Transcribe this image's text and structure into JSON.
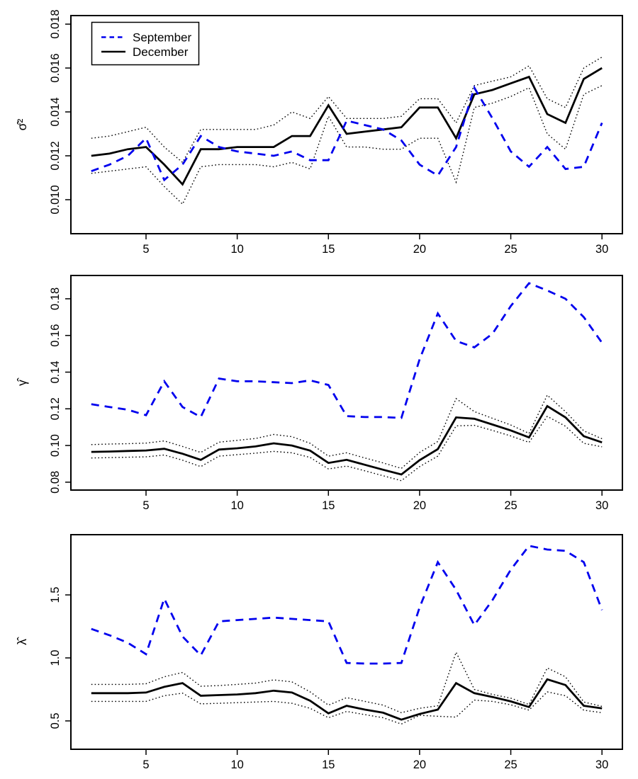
{
  "figure": {
    "background": "#ffffff",
    "series_colors": {
      "september": "#0000ee",
      "december": "#000000",
      "band": "#000000"
    }
  },
  "legend": {
    "items": [
      {
        "label": "September",
        "color": "#0000ee",
        "style": "dashed"
      },
      {
        "label": "December",
        "color": "#000000",
        "style": "solid"
      }
    ]
  },
  "chart_data": [
    {
      "type": "line",
      "ylabel": "σ̂²",
      "x": [
        2,
        3,
        4,
        5,
        6,
        7,
        8,
        9,
        10,
        11,
        12,
        13,
        14,
        15,
        16,
        17,
        18,
        19,
        20,
        21,
        22,
        23,
        24,
        25,
        26,
        27,
        28,
        29,
        30
      ],
      "xlim": [
        0.88,
        31.12
      ],
      "ylim": [
        0.00845,
        0.01839
      ],
      "x_ticks": {
        "values": [
          5,
          10,
          15,
          20,
          25,
          30
        ],
        "labels": [
          "5",
          "10",
          "15",
          "20",
          "25",
          "30"
        ]
      },
      "y_ticks": {
        "values": [
          0.01,
          0.012,
          0.014,
          0.016,
          0.018
        ],
        "labels": [
          "0.010",
          "0.012",
          "0.014",
          "0.016",
          "0.018"
        ]
      },
      "grid": false,
      "legend_position": "topleft",
      "series": [
        {
          "name": "ci-upper",
          "style": "dotted",
          "color": "#000000",
          "values": [
            0.0128,
            0.0129,
            0.0131,
            0.0133,
            0.0124,
            0.0117,
            0.0132,
            0.0132,
            0.0132,
            0.0132,
            0.0134,
            0.014,
            0.0137,
            0.0147,
            0.0137,
            0.0137,
            0.0137,
            0.0138,
            0.0146,
            0.0146,
            0.0135,
            0.0152,
            0.0154,
            0.0156,
            0.0161,
            0.0146,
            0.0142,
            0.016,
            0.0165
          ]
        },
        {
          "name": "ci-lower",
          "style": "dotted",
          "color": "#000000",
          "values": [
            0.0112,
            0.0113,
            0.0114,
            0.0115,
            0.0106,
            0.0098,
            0.0115,
            0.0116,
            0.0116,
            0.0116,
            0.0115,
            0.0117,
            0.0114,
            0.0138,
            0.0124,
            0.0124,
            0.0123,
            0.0123,
            0.0128,
            0.0128,
            0.0108,
            0.0142,
            0.0144,
            0.0147,
            0.0151,
            0.013,
            0.0123,
            0.0148,
            0.0152
          ]
        },
        {
          "name": "December",
          "style": "solid",
          "color": "#000000",
          "values": [
            0.012,
            0.0121,
            0.0123,
            0.0124,
            0.0116,
            0.0107,
            0.0123,
            0.0123,
            0.0124,
            0.0124,
            0.0124,
            0.0129,
            0.0129,
            0.0143,
            0.013,
            0.0131,
            0.0132,
            0.0133,
            0.0142,
            0.0142,
            0.0128,
            0.0148,
            0.015,
            0.0153,
            0.0156,
            0.0139,
            0.0135,
            0.0155,
            0.016
          ]
        },
        {
          "name": "September",
          "style": "dashed",
          "color": "#0000ee",
          "values": [
            0.0113,
            0.0116,
            0.012,
            0.0128,
            0.0109,
            0.0116,
            0.0129,
            0.0124,
            0.0122,
            0.0121,
            0.012,
            0.0122,
            0.0118,
            0.0118,
            0.0136,
            0.0134,
            0.0132,
            0.0127,
            0.0116,
            0.0111,
            0.0124,
            0.0151,
            0.0137,
            0.0122,
            0.0115,
            0.0124,
            0.0114,
            0.0115,
            0.0135
          ]
        }
      ]
    },
    {
      "type": "line",
      "ylabel": "γ̂",
      "x": [
        2,
        3,
        4,
        5,
        6,
        7,
        8,
        9,
        10,
        11,
        12,
        13,
        14,
        15,
        16,
        17,
        18,
        19,
        20,
        21,
        22,
        23,
        24,
        25,
        26,
        27,
        28,
        29,
        30
      ],
      "xlim": [
        0.88,
        31.12
      ],
      "ylim": [
        0.0757,
        0.1927
      ],
      "x_ticks": {
        "values": [
          5,
          10,
          15,
          20,
          25,
          30
        ],
        "labels": [
          "5",
          "10",
          "15",
          "20",
          "25",
          "30"
        ]
      },
      "y_ticks": {
        "values": [
          0.08,
          0.1,
          0.12,
          0.14,
          0.16,
          0.18
        ],
        "labels": [
          "0.08",
          "0.10",
          "0.12",
          "0.14",
          "0.16",
          "0.18"
        ]
      },
      "grid": false,
      "legend_position": "none",
      "series": [
        {
          "name": "ci-upper",
          "style": "dotted",
          "color": "#000000",
          "values": [
            0.1005,
            0.1008,
            0.101,
            0.1013,
            0.1025,
            0.0995,
            0.0962,
            0.1018,
            0.1028,
            0.1038,
            0.106,
            0.1048,
            0.1012,
            0.0942,
            0.096,
            0.0932,
            0.0905,
            0.0875,
            0.0962,
            0.1022,
            0.1256,
            0.1185,
            0.1148,
            0.1112,
            0.1066,
            0.1275,
            0.1185,
            0.108,
            0.1037
          ]
        },
        {
          "name": "ci-lower",
          "style": "dotted",
          "color": "#000000",
          "values": [
            0.0932,
            0.0934,
            0.0936,
            0.0938,
            0.0948,
            0.092,
            0.0885,
            0.0942,
            0.095,
            0.0958,
            0.0968,
            0.096,
            0.0935,
            0.0872,
            0.0888,
            0.0862,
            0.0835,
            0.0808,
            0.0885,
            0.0942,
            0.1107,
            0.111,
            0.1082,
            0.1052,
            0.1017,
            0.1159,
            0.1105,
            0.1012,
            0.0993
          ]
        },
        {
          "name": "December",
          "style": "solid",
          "color": "#000000",
          "values": [
            0.0965,
            0.0967,
            0.097,
            0.0973,
            0.0982,
            0.0955,
            0.0922,
            0.0978,
            0.0985,
            0.0995,
            0.1012,
            0.1,
            0.0972,
            0.0905,
            0.0922,
            0.0895,
            0.0868,
            0.0842,
            0.092,
            0.098,
            0.1153,
            0.1146,
            0.1114,
            0.1082,
            0.1044,
            0.1215,
            0.1153,
            0.1051,
            0.1017
          ]
        },
        {
          "name": "September",
          "style": "dashed",
          "color": "#0000ee",
          "values": [
            0.1225,
            0.121,
            0.1195,
            0.1165,
            0.135,
            0.121,
            0.1155,
            0.1365,
            0.135,
            0.135,
            0.1345,
            0.134,
            0.1355,
            0.133,
            0.116,
            0.1155,
            0.1155,
            0.115,
            0.147,
            0.172,
            0.157,
            0.1535,
            0.161,
            0.176,
            0.1885,
            0.1845,
            0.18,
            0.17,
            0.156
          ]
        }
      ]
    },
    {
      "type": "line",
      "ylabel": "λ̂",
      "x": [
        2,
        3,
        4,
        5,
        6,
        7,
        8,
        9,
        10,
        11,
        12,
        13,
        14,
        15,
        16,
        17,
        18,
        19,
        20,
        21,
        22,
        23,
        24,
        25,
        26,
        27,
        28,
        29,
        30
      ],
      "xlim": [
        0.88,
        31.12
      ],
      "ylim": [
        0.275,
        1.978
      ],
      "x_ticks": {
        "values": [
          5,
          10,
          15,
          20,
          25,
          30
        ],
        "labels": [
          "5",
          "10",
          "15",
          "20",
          "25",
          "30"
        ]
      },
      "y_ticks": {
        "values": [
          0.5,
          1.0,
          1.5
        ],
        "labels": [
          "0.5",
          "1.0",
          "1.5"
        ]
      },
      "grid": false,
      "legend_position": "none",
      "series": [
        {
          "name": "ci-upper",
          "style": "dotted",
          "color": "#000000",
          "values": [
            0.79,
            0.79,
            0.79,
            0.795,
            0.85,
            0.885,
            0.775,
            0.78,
            0.79,
            0.8,
            0.825,
            0.81,
            0.73,
            0.625,
            0.685,
            0.655,
            0.625,
            0.565,
            0.6,
            0.62,
            1.045,
            0.75,
            0.71,
            0.68,
            0.63,
            0.92,
            0.85,
            0.65,
            0.615
          ]
        },
        {
          "name": "ci-lower",
          "style": "dotted",
          "color": "#000000",
          "values": [
            0.655,
            0.655,
            0.655,
            0.655,
            0.7,
            0.72,
            0.635,
            0.64,
            0.645,
            0.65,
            0.655,
            0.64,
            0.6,
            0.525,
            0.575,
            0.55,
            0.525,
            0.475,
            0.545,
            0.537,
            0.53,
            0.665,
            0.655,
            0.628,
            0.585,
            0.73,
            0.7,
            0.585,
            0.565
          ]
        },
        {
          "name": "December",
          "style": "solid",
          "color": "#000000",
          "values": [
            0.72,
            0.72,
            0.72,
            0.725,
            0.77,
            0.8,
            0.7,
            0.705,
            0.71,
            0.72,
            0.74,
            0.725,
            0.66,
            0.56,
            0.62,
            0.59,
            0.565,
            0.51,
            0.555,
            0.59,
            0.8,
            0.72,
            0.69,
            0.655,
            0.61,
            0.83,
            0.785,
            0.62,
            0.6
          ]
        },
        {
          "name": "September",
          "style": "dashed",
          "color": "#0000ee",
          "values": [
            1.23,
            1.18,
            1.12,
            1.03,
            1.47,
            1.17,
            1.02,
            1.29,
            1.3,
            1.31,
            1.32,
            1.31,
            1.3,
            1.29,
            0.96,
            0.955,
            0.955,
            0.96,
            1.4,
            1.76,
            1.54,
            1.26,
            1.46,
            1.7,
            1.89,
            1.86,
            1.85,
            1.76,
            1.38
          ]
        }
      ]
    }
  ]
}
